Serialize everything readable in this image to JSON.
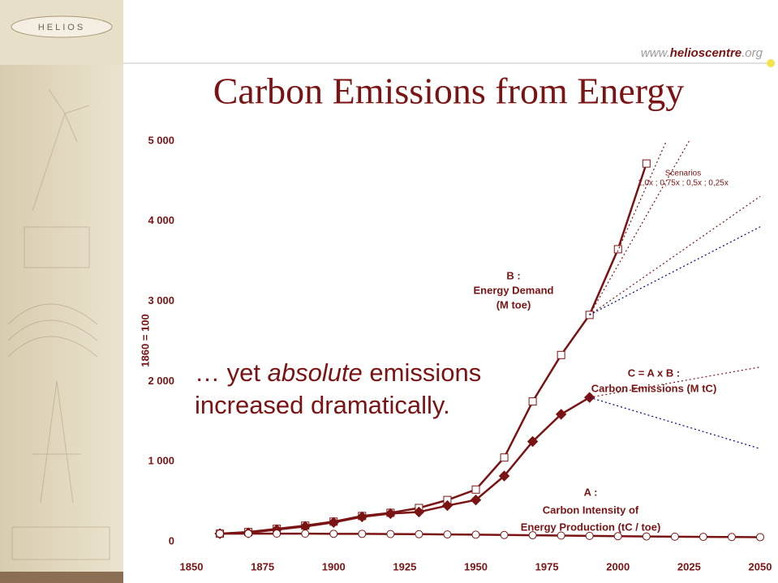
{
  "header": {
    "logo": "HELIOS",
    "url": [
      "www.",
      "helioscentre",
      ".org"
    ]
  },
  "chart_data": {
    "type": "line",
    "title": "Carbon Emissions from Energy",
    "y_label": "1860 = 100",
    "xlim": [
      1850,
      2050
    ],
    "xticks": [
      1850,
      1875,
      1900,
      1925,
      1950,
      1975,
      2000,
      2025,
      2050
    ],
    "ylim": [
      0,
      5000
    ],
    "yticks": [
      0,
      {
        "value": 1000,
        "label": "1 000"
      },
      {
        "value": 2000,
        "label": "2 000"
      },
      {
        "value": 3000,
        "label": "3 000"
      },
      {
        "value": 4000,
        "label": "4 000"
      },
      {
        "value": 5000,
        "label": "5 000"
      }
    ],
    "grid": false,
    "series": [
      {
        "x": [
          1860,
          1870,
          1880,
          1890,
          1900,
          1910,
          1920,
          1930,
          1940,
          1950,
          1960,
          1970,
          1980,
          1990,
          2000,
          2010
        ],
        "values": [
          100,
          120,
          160,
          200,
          250,
          320,
          360,
          420,
          520,
          650,
          1050,
          1750,
          2330,
          2830,
          3650,
          4720
        ],
        "color": "#7a1414",
        "marker": "square",
        "dotted": false
      },
      {
        "x": [
          1860,
          1870,
          1880,
          1890,
          1900,
          1910,
          1920,
          1930,
          1940,
          1950,
          1960,
          1970,
          1980,
          1990
        ],
        "values": [
          100,
          110,
          150,
          190,
          240,
          310,
          350,
          370,
          450,
          520,
          820,
          1250,
          1590,
          1800
        ],
        "color": "#7a1414",
        "marker": "diamond",
        "dotted": false
      },
      {
        "x": [
          1860,
          1870,
          1880,
          1890,
          1900,
          1910,
          1920,
          1930,
          1940,
          1950,
          1960,
          1970,
          1980,
          1990,
          2000,
          2010,
          2020,
          2030,
          2040,
          2050
        ],
        "values": [
          100,
          100,
          100,
          100,
          98,
          97,
          95,
          93,
          90,
          87,
          83,
          80,
          76,
          72,
          68,
          65,
          62,
          60,
          58,
          56
        ],
        "color": "#7a1414",
        "marker": "circle",
        "dotted": false
      },
      {
        "x": [
          1990,
          2017
        ],
        "values": [
          2830,
          5000
        ],
        "color": "#7a1414",
        "marker": "none",
        "dotted": true
      },
      {
        "x": [
          1990,
          2025
        ],
        "values": [
          2830,
          5000
        ],
        "color": "#7a1414",
        "marker": "none",
        "dotted": true
      },
      {
        "x": [
          1990,
          2050
        ],
        "values": [
          2830,
          4310
        ],
        "color": "#7a1414",
        "marker": "none",
        "dotted": true
      },
      {
        "x": [
          1990,
          2050
        ],
        "values": [
          2830,
          3930
        ],
        "color": "#00008b",
        "marker": "none",
        "dotted": true
      },
      {
        "x": [
          1990,
          2050
        ],
        "values": [
          1800,
          2180
        ],
        "color": "#7a1414",
        "marker": "none",
        "dotted": true
      },
      {
        "x": [
          1990,
          2050
        ],
        "values": [
          1800,
          1160
        ],
        "color": "#00008b",
        "marker": "none",
        "dotted": true
      }
    ],
    "annotations": {
      "b": [
        "B :",
        "Energy Demand",
        "(M toe)"
      ],
      "c": [
        "C = A x B :",
        "Carbon Emissions (M tC)"
      ],
      "a": [
        "A :",
        "Carbon Intensity of",
        "Energy Production (tC / toe)"
      ],
      "scenarios": [
        "Scenarios",
        "1,0x ; 0,75x ; 0,5x ; 0,25x"
      ],
      "overlay": [
        "… yet ",
        "absolute",
        " emissions",
        "increased dramatically."
      ]
    }
  }
}
